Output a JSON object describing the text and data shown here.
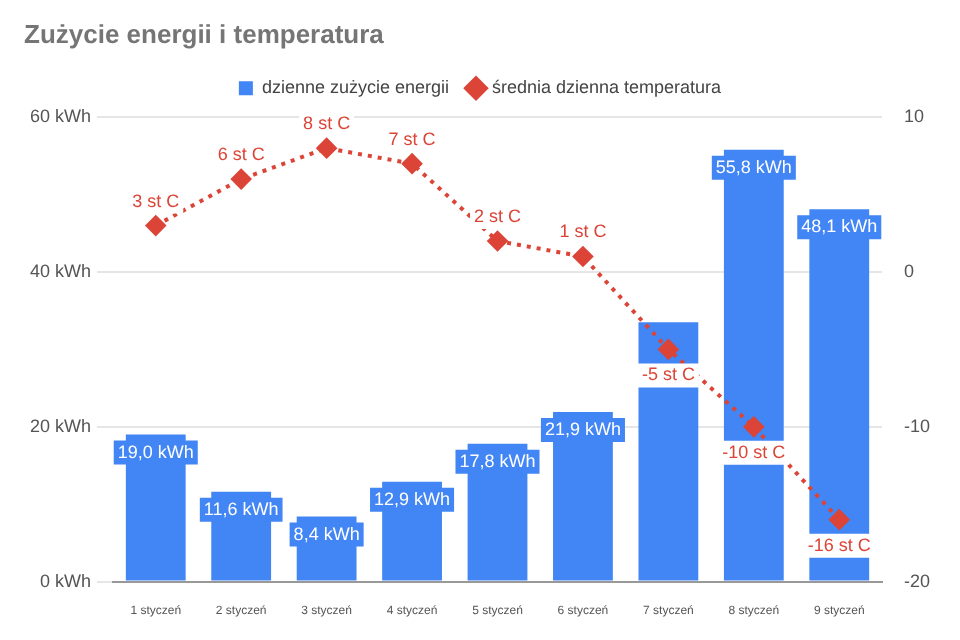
{
  "chart_data": {
    "type": "bar",
    "title": "Zużycie energii i temperatura",
    "categories": [
      "1 styczeń",
      "2 styczeń",
      "3 styczeń",
      "4 styczeń",
      "5 styczeń",
      "6 styczeń",
      "7 styczeń",
      "8 styczeń",
      "9 styczeń"
    ],
    "series": [
      {
        "name": "dzienne zużycie energii",
        "color": "#4285f4",
        "values": [
          19.0,
          11.6,
          8.4,
          12.9,
          17.8,
          21.9,
          33.5,
          55.8,
          48.1
        ],
        "value_labels": [
          "19,0 kWh",
          "11,6 kWh",
          "8,4 kWh",
          "12,9 kWh",
          "17,8 kWh",
          "21,9 kWh",
          null,
          "55,8 kWh",
          "48,1 kWh"
        ]
      },
      {
        "name": "średnia dzienna temperatura",
        "type": "line",
        "axis": "y2",
        "color": "#db4437",
        "values": [
          3,
          6,
          8,
          7,
          2,
          1,
          -5,
          -10,
          -16
        ],
        "value_labels": [
          "3 st C",
          "6 st C",
          "8 st C",
          "7 st C",
          "2 st C",
          "1 st C",
          "-5 st C",
          "-10 st C",
          "-16 st C"
        ]
      }
    ],
    "ylim": [
      0,
      60
    ],
    "yticks": [
      {
        "value": 0,
        "label": "0 kWh"
      },
      {
        "value": 20,
        "label": "20 kWh"
      },
      {
        "value": 40,
        "label": "40 kWh"
      },
      {
        "value": 60,
        "label": "60 kWh"
      }
    ],
    "y2lim": [
      -20,
      10
    ],
    "y2ticks": [
      -20,
      -10,
      0,
      10
    ],
    "grid": "y",
    "legend": "top",
    "marker": "diamond",
    "line_style": "dotted"
  }
}
